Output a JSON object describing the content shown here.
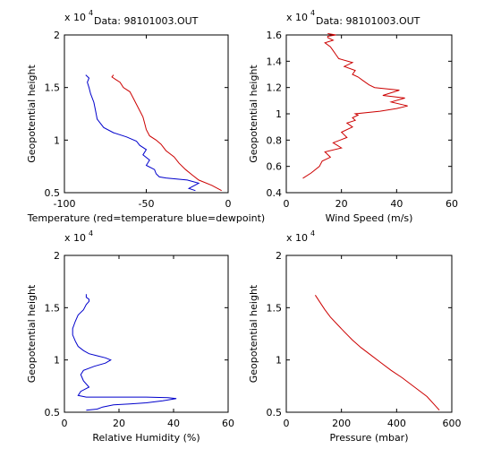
{
  "figure": {
    "background": "#ffffff"
  },
  "chart_data": [
    {
      "type": "line",
      "title": "Data: 98101003.OUT",
      "xlabel": "Temperature (red=temperature blue=dewpoint)",
      "ylabel": "Geopotential height",
      "exponent_label": "x 10",
      "exponent_power": "4",
      "xlim": [
        -100,
        0
      ],
      "ylim": [
        0.5,
        2
      ],
      "xticks": [
        "-100",
        "-50",
        "0"
      ],
      "yticks": [
        "0.5",
        "1",
        "1.5",
        "2"
      ],
      "series": [
        {
          "color": "#cc0000",
          "x": [
            -4,
            -10,
            -18,
            -22,
            -26,
            -30,
            -33,
            -38,
            -41,
            -44,
            -48,
            -50,
            -51,
            -52,
            -54,
            -56,
            -58,
            -60,
            -64,
            -66,
            -69,
            -71,
            -70
          ],
          "y": [
            0.52,
            0.57,
            0.62,
            0.67,
            0.72,
            0.78,
            0.84,
            0.9,
            0.96,
            1.0,
            1.04,
            1.1,
            1.16,
            1.22,
            1.28,
            1.34,
            1.4,
            1.46,
            1.5,
            1.55,
            1.58,
            1.6,
            1.62
          ]
        },
        {
          "color": "#0000cc",
          "x": [
            -20,
            -24,
            -18,
            -25,
            -38,
            -42,
            -44,
            -45,
            -50,
            -48,
            -52,
            -50,
            -54,
            -56,
            -62,
            -70,
            -76,
            -80,
            -81,
            -82,
            -84,
            -85,
            -86,
            -85,
            -87
          ],
          "y": [
            0.52,
            0.54,
            0.59,
            0.62,
            0.64,
            0.65,
            0.68,
            0.72,
            0.76,
            0.81,
            0.86,
            0.91,
            0.95,
            0.99,
            1.03,
            1.07,
            1.12,
            1.2,
            1.28,
            1.36,
            1.44,
            1.5,
            1.55,
            1.59,
            1.62
          ]
        }
      ]
    },
    {
      "type": "line",
      "title": "Data: 98101003.OUT",
      "xlabel": "Wind Speed (m/s)",
      "ylabel": "Geopotential height",
      "exponent_label": "x 10",
      "exponent_power": "4",
      "xlim": [
        0,
        60
      ],
      "ylim": [
        0.4,
        1.6
      ],
      "xticks": [
        "0",
        "20",
        "40",
        "60"
      ],
      "yticks": [
        "0.4",
        "0.6",
        "0.8",
        "1",
        "1.2",
        "1.4",
        "1.6"
      ],
      "series": [
        {
          "color": "#cc0000",
          "x": [
            6,
            9,
            12,
            13,
            16,
            14,
            20,
            17,
            22,
            20,
            24,
            22,
            25,
            24,
            26,
            25,
            34,
            40,
            44,
            38,
            43,
            35,
            41,
            32,
            30,
            28,
            26,
            24,
            25,
            21,
            24,
            19,
            18,
            17,
            16,
            14,
            17,
            15,
            15,
            18,
            15
          ],
          "y": [
            0.51,
            0.55,
            0.6,
            0.64,
            0.67,
            0.71,
            0.74,
            0.78,
            0.82,
            0.86,
            0.9,
            0.93,
            0.95,
            0.97,
            0.99,
            1.0,
            1.02,
            1.04,
            1.06,
            1.09,
            1.12,
            1.14,
            1.18,
            1.2,
            1.22,
            1.25,
            1.28,
            1.3,
            1.33,
            1.36,
            1.39,
            1.42,
            1.45,
            1.48,
            1.51,
            1.54,
            1.56,
            1.58,
            1.59,
            1.6,
            1.61
          ]
        }
      ]
    },
    {
      "type": "line",
      "title": "",
      "xlabel": "Relative Humidity (%)",
      "ylabel": "Geopotential height",
      "exponent_label": "x 10",
      "exponent_power": "4",
      "xlim": [
        0,
        60
      ],
      "ylim": [
        0.5,
        2
      ],
      "xticks": [
        "0",
        "20",
        "40",
        "60"
      ],
      "yticks": [
        "0.5",
        "1",
        "1.5",
        "2"
      ],
      "series": [
        {
          "color": "#0000cc",
          "x": [
            8,
            12,
            14,
            18,
            24,
            30,
            36,
            41,
            38,
            30,
            20,
            12,
            8,
            5,
            6,
            9,
            7,
            6,
            7,
            11,
            15,
            17,
            15,
            12,
            9,
            7,
            5,
            4,
            3,
            3,
            4,
            5,
            7,
            8,
            9,
            9,
            8,
            8
          ],
          "y": [
            0.52,
            0.53,
            0.55,
            0.57,
            0.58,
            0.59,
            0.61,
            0.63,
            0.64,
            0.645,
            0.645,
            0.645,
            0.645,
            0.66,
            0.7,
            0.74,
            0.8,
            0.86,
            0.9,
            0.94,
            0.97,
            1.0,
            1.02,
            1.04,
            1.06,
            1.09,
            1.13,
            1.18,
            1.24,
            1.3,
            1.37,
            1.43,
            1.48,
            1.53,
            1.56,
            1.58,
            1.6,
            1.63
          ]
        }
      ]
    },
    {
      "type": "line",
      "title": "",
      "xlabel": "Pressure (mbar)",
      "ylabel": "Geopotential height",
      "exponent_label": "x 10",
      "exponent_power": "4",
      "xlim": [
        0,
        600
      ],
      "ylim": [
        0.5,
        2
      ],
      "xticks": [
        "0",
        "200",
        "400",
        "600"
      ],
      "yticks": [
        "0.5",
        "1",
        "1.5",
        "2"
      ],
      "series": [
        {
          "color": "#cc0000",
          "x": [
            105,
            120,
            140,
            160,
            185,
            210,
            240,
            270,
            305,
            340,
            380,
            420,
            465,
            510,
            555
          ],
          "y": [
            1.62,
            1.56,
            1.48,
            1.41,
            1.34,
            1.27,
            1.19,
            1.12,
            1.05,
            0.98,
            0.9,
            0.83,
            0.74,
            0.65,
            0.52
          ]
        }
      ]
    }
  ]
}
